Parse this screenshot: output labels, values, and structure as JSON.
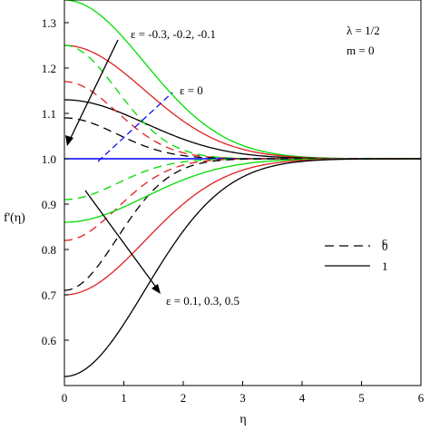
{
  "chart_data": {
    "type": "line",
    "xlabel": "η",
    "ylabel": "f'(η)",
    "xlim": [
      0,
      6
    ],
    "ylim": [
      0.5,
      1.35
    ],
    "xticks": [
      "0",
      "1",
      "2",
      "3",
      "4",
      "5",
      "6"
    ],
    "yticks": [
      "0.6",
      "0.7",
      "0.8",
      "0.9",
      "1.0",
      "1.1",
      "1.2",
      "1.3"
    ],
    "grid": false,
    "parameters": [
      "λ = 1/2",
      "m = 0"
    ],
    "annotations": {
      "negative_eps": "ε = -0.3, -0.2, -0.1",
      "zero_eps": "ε = 0",
      "positive_eps": "ε = 0.1, 0.3, 0.5"
    },
    "legend": {
      "title": "c",
      "position": "right",
      "entries": [
        {
          "label": "0",
          "style": "dashed"
        },
        {
          "label": "1",
          "style": "solid"
        }
      ]
    },
    "colors": {
      "green": "#00dd00",
      "red": "#e02020",
      "black": "#000000",
      "blue": "#0000ff"
    },
    "series": [
      {
        "eps": "-0.3",
        "c": "1",
        "color": "green",
        "style": "solid",
        "y0": 1.35,
        "k": 1.05
      },
      {
        "eps": "-0.2",
        "c": "1",
        "color": "red",
        "style": "solid",
        "y0": 1.25,
        "k": 1.05
      },
      {
        "eps": "-0.1",
        "c": "1",
        "color": "black",
        "style": "solid",
        "y0": 1.13,
        "k": 1.05
      },
      {
        "eps": "-0.3",
        "c": "0",
        "color": "green",
        "style": "dashed",
        "y0": 1.25,
        "k": 1.6
      },
      {
        "eps": "-0.2",
        "c": "0",
        "color": "red",
        "style": "dashed",
        "y0": 1.17,
        "k": 1.6
      },
      {
        "eps": "-0.1",
        "c": "0",
        "color": "black",
        "style": "dashed",
        "y0": 1.09,
        "k": 1.6
      },
      {
        "eps": "0",
        "c": "0, 1",
        "color": "blue",
        "style": "solid",
        "y0": 1.0,
        "k": 1.0
      },
      {
        "eps": "0.1",
        "c": "0",
        "color": "green",
        "style": "dashed",
        "y0": 0.91,
        "k": 1.6
      },
      {
        "eps": "0.3",
        "c": "0",
        "color": "red",
        "style": "dashed",
        "y0": 0.82,
        "k": 1.6
      },
      {
        "eps": "0.5",
        "c": "0",
        "color": "black",
        "style": "dashed",
        "y0": 0.71,
        "k": 1.6
      },
      {
        "eps": "0.1",
        "c": "1",
        "color": "green",
        "style": "solid",
        "y0": 0.86,
        "k": 1.05
      },
      {
        "eps": "0.3",
        "c": "1",
        "color": "red",
        "style": "solid",
        "y0": 0.7,
        "k": 1.05
      },
      {
        "eps": "0.5",
        "c": "1",
        "color": "black",
        "style": "solid",
        "y0": 0.52,
        "k": 1.05
      }
    ]
  }
}
